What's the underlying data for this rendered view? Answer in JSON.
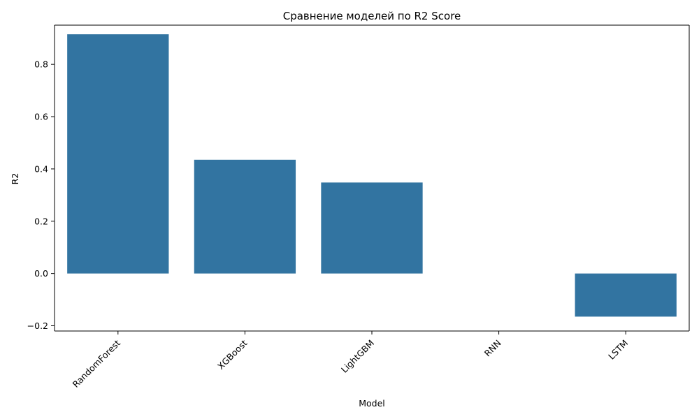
{
  "chart_data": {
    "type": "bar",
    "title": "Сравнение моделей по R2 Score",
    "xlabel": "Model",
    "ylabel": "R2",
    "categories": [
      "RandomForest",
      "XGBoost",
      "LightGBM",
      "RNN",
      "LSTM"
    ],
    "values": [
      0.915,
      0.435,
      0.348,
      0.0,
      -0.165
    ],
    "ylim": [
      -0.22,
      0.95
    ],
    "yticks": [
      -0.2,
      0.0,
      0.2,
      0.4,
      0.6,
      0.8
    ],
    "ytick_labels": [
      "−0.2",
      "0.0",
      "0.2",
      "0.4",
      "0.6",
      "0.8"
    ],
    "xtick_rotation": 45,
    "bar_color": "#3274a1",
    "grid": false
  }
}
